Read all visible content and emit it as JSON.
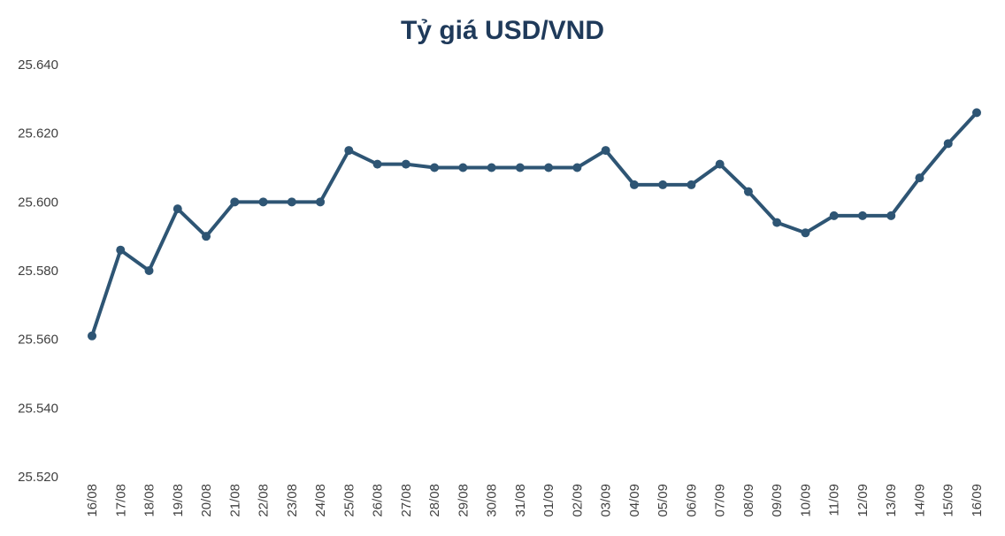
{
  "chart_data": {
    "type": "line",
    "title": "Tỷ giá USD/VND",
    "xlabel": "",
    "ylabel": "",
    "ylim": [
      25520,
      25640
    ],
    "y_ticks": [
      "25.520",
      "25.540",
      "25.560",
      "25.580",
      "25.600",
      "25.620",
      "25.640"
    ],
    "y_tick_values": [
      25520,
      25540,
      25560,
      25580,
      25600,
      25620,
      25640
    ],
    "grid": false,
    "legend": "none",
    "categories": [
      "16/08",
      "17/08",
      "18/08",
      "19/08",
      "20/08",
      "21/08",
      "22/08",
      "23/08",
      "24/08",
      "25/08",
      "26/08",
      "27/08",
      "28/08",
      "29/08",
      "30/08",
      "31/08",
      "01/09",
      "02/09",
      "03/09",
      "04/09",
      "05/09",
      "06/09",
      "07/09",
      "08/09",
      "09/09",
      "10/09",
      "11/09",
      "12/09",
      "13/09",
      "14/09",
      "15/09",
      "16/09"
    ],
    "series": [
      {
        "values": [
          25561,
          25586,
          25580,
          25598,
          25590,
          25600,
          25600,
          25600,
          25600,
          25615,
          25611,
          25611,
          25610,
          25610,
          25610,
          25610,
          25610,
          25610,
          25615,
          25605,
          25605,
          25605,
          25611,
          25603,
          25594,
          25591,
          25596,
          25596,
          25596,
          25607,
          25617,
          25626
        ],
        "color": "#2e5574"
      }
    ]
  }
}
